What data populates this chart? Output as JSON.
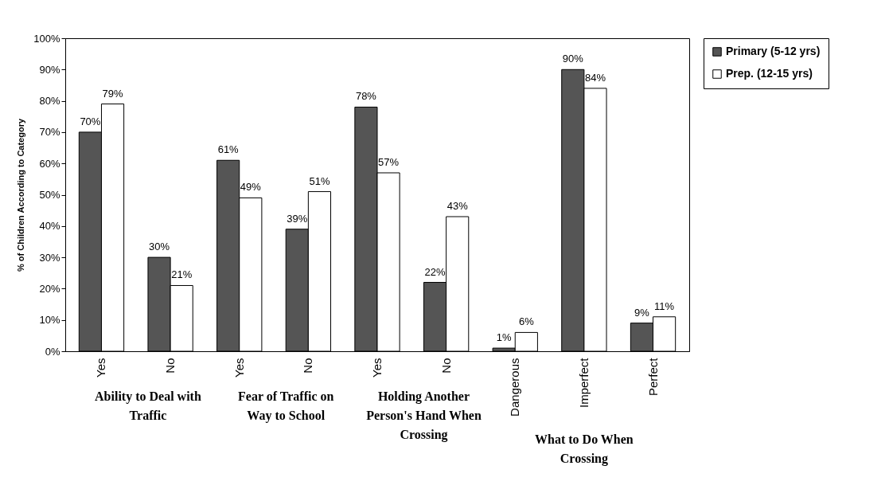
{
  "chart_data": {
    "type": "bar",
    "ylabel": "% of Children According to Category",
    "categories": [
      "Yes",
      "No",
      "Yes",
      "No",
      "Yes",
      "No",
      "Dangerous",
      "Imperfect",
      "Perfect"
    ],
    "series": [
      {
        "name": "Primary (5-12 yrs)",
        "color": "#555555",
        "values": [
          70,
          30,
          61,
          39,
          78,
          22,
          1,
          90,
          9
        ],
        "value_labels": [
          "70%",
          "30%",
          "61%",
          "39%",
          "78%",
          "22%",
          "1%",
          "90%",
          "9%"
        ]
      },
      {
        "name": "Prep. (12-15 yrs)",
        "color": "#ffffff",
        "values": [
          79,
          21,
          49,
          51,
          57,
          43,
          6,
          84,
          11
        ],
        "value_labels": [
          "79%",
          "21%",
          "49%",
          "51%",
          "57%",
          "43%",
          "6%",
          "84%",
          "11%"
        ]
      }
    ],
    "ylim": [
      0,
      100
    ],
    "yticks": [
      {
        "value": 0,
        "label": "0%"
      },
      {
        "value": 10,
        "label": "10%"
      },
      {
        "value": 20,
        "label": "20%"
      },
      {
        "value": 30,
        "label": "30%"
      },
      {
        "value": 40,
        "label": "40%"
      },
      {
        "value": 50,
        "label": "50%"
      },
      {
        "value": 60,
        "label": "60%"
      },
      {
        "value": 70,
        "label": "70%"
      },
      {
        "value": 80,
        "label": "80%"
      },
      {
        "value": 90,
        "label": "90%"
      },
      {
        "value": 100,
        "label": "100%"
      }
    ],
    "annotations": [
      "Ability to Deal with Traffic",
      "Fear of Traffic on Way to School",
      "Holding Another Person's Hand When Crossing",
      "What to Do When Crossing"
    ],
    "legend": "right",
    "grid": false
  }
}
